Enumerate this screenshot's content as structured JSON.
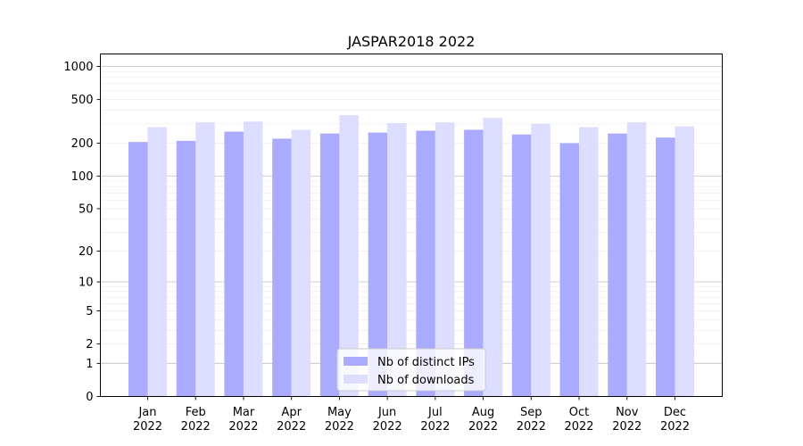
{
  "chart_data": {
    "type": "bar",
    "title": "JASPAR2018 2022",
    "xlabel": "",
    "ylabel": "",
    "yscale": "symlog",
    "ylim": [
      0,
      1300
    ],
    "yticks": [
      0,
      1,
      2,
      5,
      10,
      20,
      50,
      100,
      200,
      500,
      1000
    ],
    "grid": true,
    "legend_position": "bottom-center",
    "categories": [
      "Jan\n2022",
      "Feb\n2022",
      "Mar\n2022",
      "Apr\n2022",
      "May\n2022",
      "Jun\n2022",
      "Jul\n2022",
      "Aug\n2022",
      "Sep\n2022",
      "Oct\n2022",
      "Nov\n2022",
      "Dec\n2022"
    ],
    "series": [
      {
        "name": "Nb of distinct IPs",
        "color": "#aaaaff",
        "values": [
          205,
          210,
          255,
          220,
          245,
          250,
          260,
          265,
          240,
          200,
          245,
          225
        ]
      },
      {
        "name": "Nb of downloads",
        "color": "#ddddff",
        "values": [
          280,
          310,
          315,
          265,
          360,
          305,
          310,
          340,
          300,
          280,
          310,
          285
        ]
      }
    ]
  }
}
